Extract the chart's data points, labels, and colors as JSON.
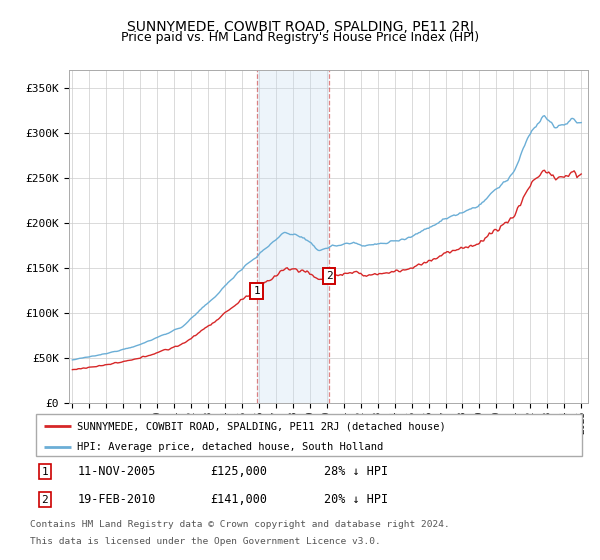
{
  "title": "SUNNYMEDE, COWBIT ROAD, SPALDING, PE11 2RJ",
  "subtitle": "Price paid vs. HM Land Registry's House Price Index (HPI)",
  "legend_line1": "SUNNYMEDE, COWBIT ROAD, SPALDING, PE11 2RJ (detached house)",
  "legend_line2": "HPI: Average price, detached house, South Holland",
  "sale1_date": "11-NOV-2005",
  "sale1_price": "£125,000",
  "sale1_hpi": "28% ↓ HPI",
  "sale2_date": "19-FEB-2010",
  "sale2_price": "£141,000",
  "sale2_hpi": "20% ↓ HPI",
  "footer": "Contains HM Land Registry data © Crown copyright and database right 2024.\nThis data is licensed under the Open Government Licence v3.0.",
  "hpi_color": "#6baed6",
  "price_color": "#d62728",
  "shade_color": "#c6dbef",
  "ylim": [
    0,
    370000
  ],
  "yticks": [
    0,
    50000,
    100000,
    150000,
    200000,
    250000,
    300000,
    350000
  ],
  "xstart": 1994.8,
  "xend": 2025.4,
  "sale1_x": 2005.87,
  "sale2_x": 2010.13,
  "sale1_price_val": 125000,
  "sale2_price_val": 141000
}
